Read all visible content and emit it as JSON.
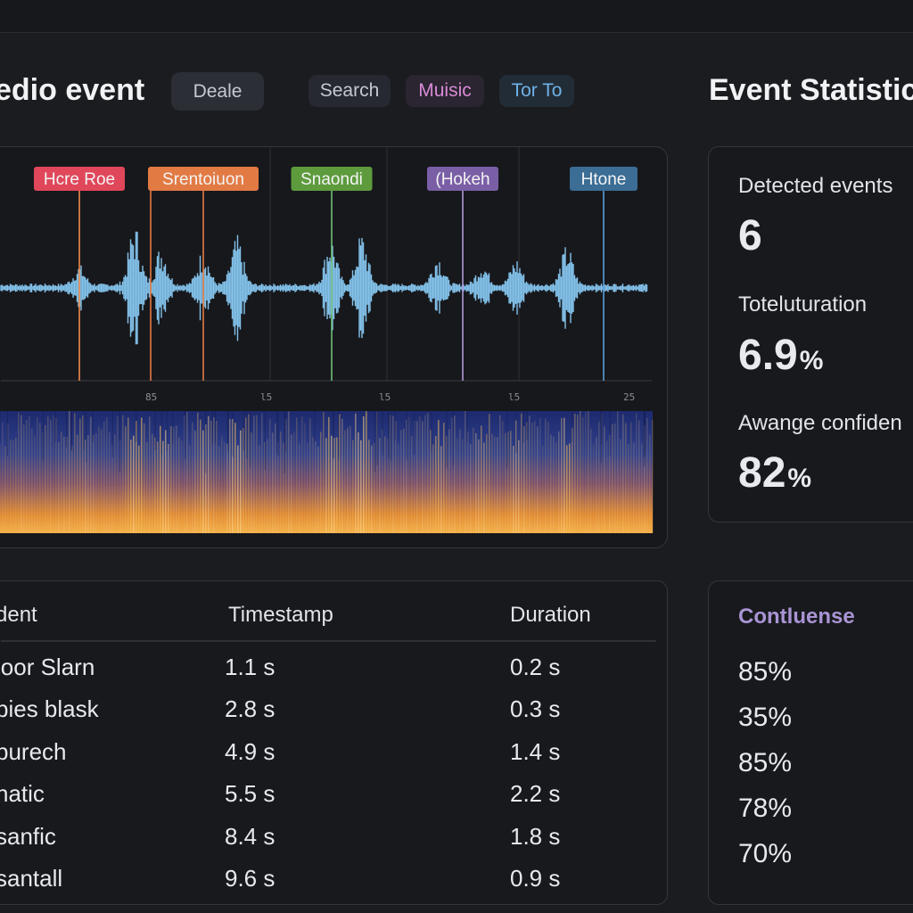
{
  "header": {
    "title": "edio event",
    "primary_button": "Deale",
    "filters": [
      "Search",
      "Muisic",
      "Tor To"
    ]
  },
  "waveform": {
    "markers": [
      {
        "label": "Hcre Roe",
        "color": "#e0475a",
        "line": "#f08a4a"
      },
      {
        "label": "Srentoiuon",
        "color": "#e27a44",
        "line": "#e27a44"
      },
      {
        "label": "Snaondi",
        "color": "#5d9b3d",
        "line": "#6fc07a"
      },
      {
        "label": "(Hokeh",
        "color": "#7a5fa6",
        "line": "#b09ad8"
      },
      {
        "label": "Htone",
        "color": "#3b6d95",
        "line": "#5b9ed6"
      }
    ],
    "time_ticks": [
      "85",
      "l5",
      "l5",
      "l5",
      "25"
    ],
    "colors": {
      "wave": "#84c3ec",
      "spec_low": "#f0a43a",
      "spec_high": "#253a86"
    }
  },
  "stats": {
    "title": "Event Statistic",
    "items": [
      {
        "label": "Detected events",
        "value": "6",
        "unit": ""
      },
      {
        "label": "Toteluturation",
        "value": "6.9",
        "unit": "%"
      },
      {
        "label": "Awange confiden",
        "value": "82",
        "unit": "%"
      }
    ]
  },
  "table": {
    "headers": [
      "dent",
      "Timestamp",
      "Duration"
    ],
    "rows": [
      [
        "loor Slarn",
        "1.1 s",
        "0.2 s"
      ],
      [
        "bies blask",
        "2.8 s",
        "0.3 s"
      ],
      [
        "purech",
        "4.9 s",
        "1.4 s"
      ],
      [
        "hatic",
        "5.5 s",
        "2.2 s"
      ],
      [
        "sanfic",
        "8.4 s",
        "1.8 s"
      ],
      [
        "santall",
        "9.6 s",
        "0.9 s"
      ]
    ]
  },
  "confidence": {
    "title": "Contluense",
    "values": [
      "85%",
      "35%",
      "85%",
      "78%",
      "70%"
    ]
  }
}
